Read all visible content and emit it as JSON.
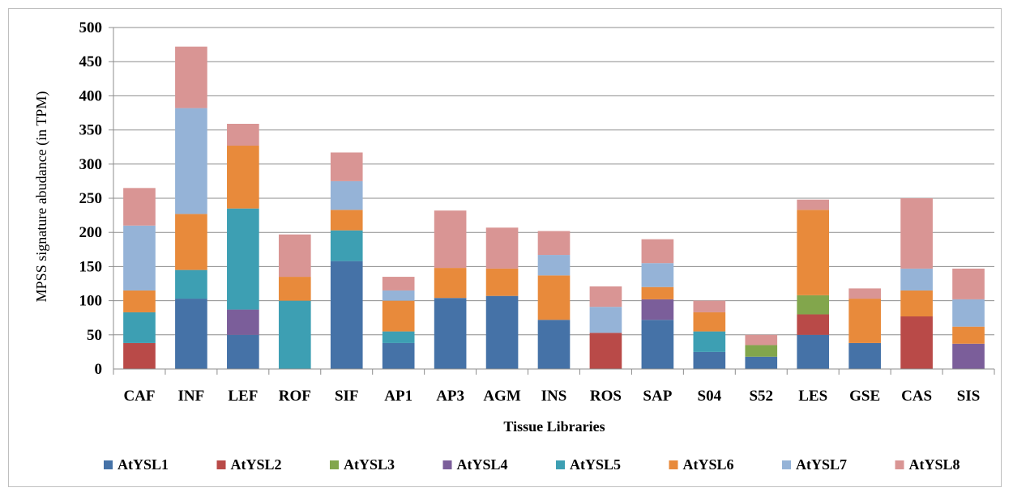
{
  "chart_data": {
    "type": "bar",
    "stacked": true,
    "xlabel": "Tissue Libraries",
    "ylabel": "MPSS signature abudance (in TPM)",
    "ylim": [
      0,
      500
    ],
    "yticks": [
      0,
      50,
      100,
      150,
      200,
      250,
      300,
      350,
      400,
      450,
      500
    ],
    "grid": true,
    "legend_position": "bottom",
    "categories": [
      "CAF",
      "INF",
      "LEF",
      "ROF",
      "SIF",
      "AP1",
      "AP3",
      "AGM",
      "INS",
      "ROS",
      "SAP",
      "S04",
      "S52",
      "LES",
      "GSE",
      "CAS",
      "SIS"
    ],
    "series": [
      {
        "name": "AtYSL1",
        "color": "#4572a7",
        "values": [
          0,
          103,
          50,
          0,
          158,
          38,
          104,
          107,
          72,
          0,
          72,
          25,
          18,
          50,
          38,
          0,
          0
        ]
      },
      {
        "name": "AtYSL2",
        "color": "#b94a48",
        "values": [
          38,
          0,
          0,
          0,
          0,
          0,
          0,
          0,
          0,
          53,
          0,
          0,
          0,
          30,
          0,
          77,
          0
        ]
      },
      {
        "name": "AtYSL3",
        "color": "#82a64c",
        "values": [
          0,
          0,
          0,
          0,
          0,
          0,
          0,
          0,
          0,
          0,
          0,
          0,
          17,
          28,
          0,
          0,
          0
        ]
      },
      {
        "name": "AtYSL4",
        "color": "#7b5e9a",
        "values": [
          0,
          0,
          37,
          0,
          0,
          0,
          0,
          0,
          0,
          0,
          30,
          0,
          0,
          0,
          0,
          0,
          37
        ]
      },
      {
        "name": "AtYSL5",
        "color": "#3d9fb3",
        "values": [
          45,
          42,
          148,
          100,
          45,
          17,
          0,
          0,
          0,
          0,
          0,
          30,
          0,
          0,
          0,
          0,
          0
        ]
      },
      {
        "name": "AtYSL6",
        "color": "#e88a3b",
        "values": [
          32,
          82,
          92,
          35,
          30,
          45,
          44,
          40,
          65,
          0,
          18,
          28,
          0,
          125,
          65,
          38,
          25
        ]
      },
      {
        "name": "AtYSL7",
        "color": "#95b3d7",
        "values": [
          95,
          155,
          0,
          0,
          42,
          15,
          0,
          0,
          30,
          38,
          35,
          0,
          0,
          0,
          0,
          32,
          40
        ]
      },
      {
        "name": "AtYSL8",
        "color": "#d99594",
        "values": [
          55,
          90,
          32,
          62,
          42,
          20,
          84,
          60,
          35,
          30,
          35,
          17,
          15,
          15,
          15,
          103,
          45
        ]
      }
    ]
  }
}
